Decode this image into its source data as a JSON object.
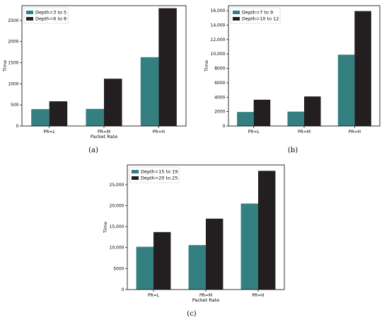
{
  "colors": {
    "series_a": "#348080",
    "series_b": "#231f20"
  },
  "chart_data": [
    {
      "type": "bar",
      "caption": "(a)",
      "categories": [
        "PR=L",
        "PR=M",
        "PR=H"
      ],
      "series": [
        {
          "name": "Depth=3 to 5",
          "values": [
            400,
            405,
            1630
          ]
        },
        {
          "name": "Depth=6 to 8",
          "values": [
            585,
            1120,
            2790
          ]
        }
      ],
      "xlabel": "Packet Rate",
      "ylabel": "Time",
      "ylim": [
        0,
        2850
      ],
      "yticks": [
        0,
        500,
        1000,
        1500,
        2000,
        2500
      ],
      "ytick_labels": [
        "0",
        "500",
        "1000",
        "1500",
        "2000",
        "2500"
      ],
      "legend": "top-left",
      "grid": false
    },
    {
      "type": "bar",
      "caption": "(b)",
      "categories": [
        "PR=L",
        "PR=M",
        "PR=H"
      ],
      "series": [
        {
          "name": "Depth=7 to 9",
          "values": [
            1950,
            2000,
            9900
          ]
        },
        {
          "name": "Depth=10 to 12",
          "values": [
            3650,
            4100,
            15950
          ]
        }
      ],
      "xlabel": "",
      "ylabel": "Time",
      "ylim": [
        0,
        16700
      ],
      "yticks": [
        0,
        2000,
        4000,
        6000,
        8000,
        10000,
        12000,
        14000,
        16000
      ],
      "ytick_labels": [
        "0",
        "2000",
        "4000",
        "6000",
        "8000",
        "10,000",
        "12,000",
        "14,000",
        "16,000"
      ],
      "legend": "top-left",
      "grid": false
    },
    {
      "type": "bar",
      "caption": "(c)",
      "categories": [
        "PR=L",
        "PR=M",
        "PR=H"
      ],
      "series": [
        {
          "name": "Depth=15 to 19",
          "values": [
            10200,
            10600,
            20500
          ]
        },
        {
          "name": "Depth=20 to 25",
          "values": [
            13700,
            16900,
            28300
          ]
        }
      ],
      "xlabel": "Packet Rate",
      "ylabel": "Time",
      "ylim": [
        0,
        29700
      ],
      "yticks": [
        0,
        5000,
        10000,
        15000,
        20000,
        25000
      ],
      "ytick_labels": [
        "0",
        "5000",
        "10,000",
        "15,000",
        "20,000",
        "25,000"
      ],
      "legend": "top-left",
      "grid": false
    }
  ]
}
